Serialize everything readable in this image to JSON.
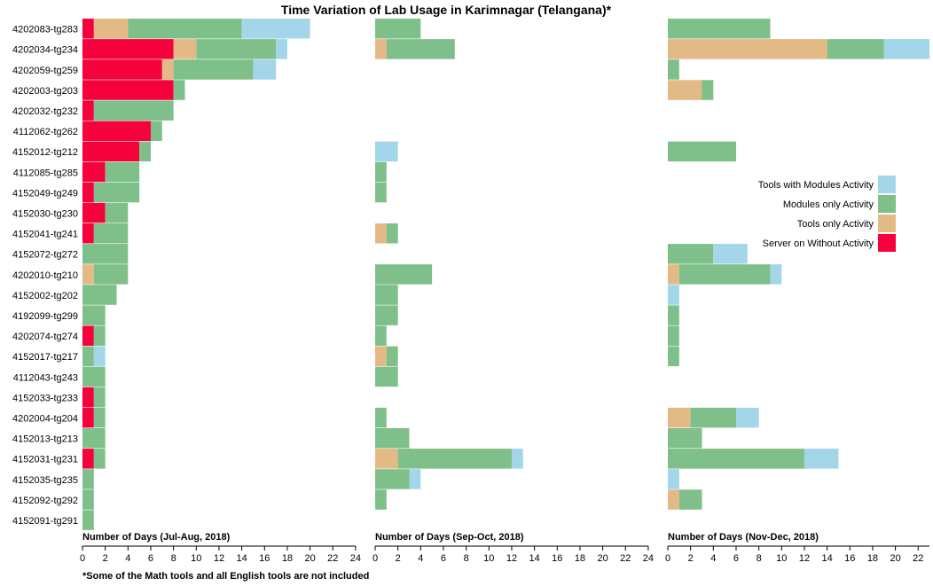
{
  "chart_data": {
    "type": "bar",
    "orientation": "horizontal",
    "stacked": true,
    "title": "Time Variation of Lab Usage in Karimnagar (Telangana)*",
    "footnote": "*Some of the Math tools and all English tools are not included",
    "categories": [
      "4202083-tg283",
      "4202034-tg234",
      "4202059-tg259",
      "4202003-tg203",
      "4202032-tg232",
      "4112062-tg262",
      "4152012-tg212",
      "4112085-tg285",
      "4152049-tg249",
      "4152030-tg230",
      "4152041-tg241",
      "4152072-tg272",
      "4202010-tg210",
      "4152002-tg202",
      "4192099-tg299",
      "4202074-tg274",
      "4152017-tg217",
      "4112043-tg243",
      "4152033-tg233",
      "4202004-tg204",
      "4152013-tg213",
      "4152031-tg231",
      "4152035-tg235",
      "4152092-tg292",
      "4152091-tg291"
    ],
    "legend": {
      "position": "right",
      "entries": [
        "Tools with Modules Activity",
        "Modules only Activity",
        "Tools only Activity",
        "Server on Without Activity"
      ]
    },
    "colors": {
      "server": "#f5023c",
      "tools": "#e3b985",
      "modules": "#7fbf8a",
      "toolsModules": "#a3d6e8"
    },
    "panels": [
      {
        "xlabel": "Number of Days (Jul-Aug, 2018)",
        "xlim": [
          0,
          24
        ],
        "ticks": [
          0,
          2,
          4,
          6,
          8,
          10,
          12,
          14,
          16,
          18,
          20,
          22,
          24
        ],
        "series": {
          "server": [
            1,
            8,
            7,
            8,
            1,
            6,
            5,
            2,
            1,
            2,
            1,
            0,
            0,
            0,
            0,
            1,
            0,
            0,
            1,
            1,
            0,
            1,
            0,
            0,
            0
          ],
          "tools": [
            3,
            2,
            1,
            0,
            0,
            0,
            0,
            0,
            0,
            0,
            0,
            0,
            1,
            0,
            0,
            0,
            0,
            0,
            0,
            0,
            0,
            0,
            0,
            0,
            0
          ],
          "modules": [
            10,
            7,
            7,
            1,
            7,
            1,
            1,
            3,
            4,
            2,
            3,
            4,
            3,
            3,
            2,
            1,
            1,
            2,
            1,
            1,
            2,
            1,
            1,
            1,
            1
          ],
          "toolsModules": [
            6,
            1,
            2,
            0,
            0,
            0,
            0,
            0,
            0,
            0,
            0,
            0,
            0,
            0,
            0,
            0,
            1,
            0,
            0,
            0,
            0,
            0,
            0,
            0,
            0
          ]
        }
      },
      {
        "xlabel": "Number of Days (Sep-Oct, 2018)",
        "xlim": [
          0,
          24
        ],
        "ticks": [
          0,
          2,
          4,
          6,
          8,
          10,
          12,
          14,
          16,
          18,
          20,
          22,
          24
        ],
        "series": {
          "server": [
            0,
            0,
            0,
            0,
            0,
            0,
            0,
            0,
            0,
            0,
            0,
            0,
            0,
            0,
            0,
            0,
            0,
            0,
            0,
            0,
            0,
            0,
            0,
            0,
            0
          ],
          "tools": [
            0,
            1,
            0,
            0,
            0,
            0,
            0,
            0,
            0,
            0,
            1,
            0,
            0,
            0,
            0,
            0,
            1,
            0,
            0,
            0,
            0,
            2,
            0,
            0,
            0
          ],
          "modules": [
            4,
            6,
            0,
            0,
            0,
            0,
            0,
            1,
            1,
            0,
            1,
            0,
            5,
            2,
            2,
            1,
            1,
            2,
            0,
            1,
            3,
            10,
            3,
            1,
            0
          ],
          "toolsModules": [
            0,
            0,
            0,
            0,
            0,
            0,
            2,
            0,
            0,
            0,
            0,
            0,
            0,
            0,
            0,
            0,
            0,
            0,
            0,
            0,
            0,
            1,
            1,
            0,
            0
          ]
        }
      },
      {
        "xlabel": "Number of Days (Nov-Dec, 2018)",
        "xlim": [
          0,
          23
        ],
        "ticks": [
          0,
          2,
          4,
          6,
          8,
          10,
          12,
          14,
          16,
          18,
          20,
          22
        ],
        "series": {
          "server": [
            0,
            0,
            0,
            0,
            0,
            0,
            0,
            0,
            0,
            0,
            0,
            0,
            0,
            0,
            0,
            0,
            0,
            0,
            0,
            0,
            0,
            0,
            0,
            0,
            0
          ],
          "tools": [
            0,
            14,
            0,
            3,
            0,
            0,
            0,
            0,
            0,
            0,
            0,
            0,
            1,
            0,
            0,
            0,
            0,
            0,
            0,
            2,
            0,
            0,
            0,
            1,
            0
          ],
          "modules": [
            9,
            5,
            1,
            1,
            0,
            0,
            6,
            0,
            0,
            0,
            0,
            4,
            8,
            0,
            1,
            1,
            1,
            0,
            0,
            4,
            3,
            12,
            0,
            2,
            0
          ],
          "toolsModules": [
            0,
            4,
            0,
            0,
            0,
            0,
            0,
            0,
            0,
            0,
            0,
            3,
            1,
            1,
            0,
            0,
            0,
            0,
            0,
            2,
            0,
            3,
            1,
            0,
            0
          ]
        }
      }
    ]
  }
}
